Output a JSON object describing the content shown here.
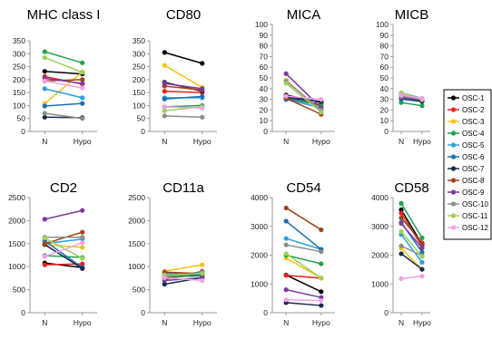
{
  "chart_data": {
    "type": "line",
    "categories": [
      "N",
      "Hypo"
    ],
    "legend": [
      {
        "name": "OSC-1",
        "color": "#000000"
      },
      {
        "name": "OSC-2",
        "color": "#e8201c"
      },
      {
        "name": "OSC-3",
        "color": "#f0c414"
      },
      {
        "name": "OSC-4",
        "color": "#1fa34a"
      },
      {
        "name": "OSC-5",
        "color": "#2aa0dc"
      },
      {
        "name": "OSC-6",
        "color": "#1f6eb4"
      },
      {
        "name": "OSC-7",
        "color": "#1a2a4a"
      },
      {
        "name": "OSC-8",
        "color": "#a0421a"
      },
      {
        "name": "OSC-9",
        "color": "#7a3aa0"
      },
      {
        "name": "OSC-10",
        "color": "#8c8c8c"
      },
      {
        "name": "OSC-11",
        "color": "#9cd05a"
      },
      {
        "name": "OSC-12",
        "color": "#f2a0e6"
      }
    ],
    "panels": [
      {
        "title": "MHC class I",
        "ylim": [
          0,
          350
        ],
        "yticks": [
          "0",
          "50",
          "100",
          "150",
          "200",
          "250",
          "300",
          "350"
        ],
        "series": [
          [
            232,
            222
          ],
          [
            212,
            183
          ],
          [
            108,
            230
          ],
          [
            308,
            265
          ],
          [
            165,
            130
          ],
          [
            98,
            108
          ],
          [
            55,
            53
          ],
          [
            195,
            200
          ],
          [
            205,
            185
          ],
          [
            70,
            50
          ],
          [
            285,
            228
          ],
          [
            195,
            168
          ]
        ]
      },
      {
        "title": "CD80",
        "ylim": [
          0,
          350
        ],
        "yticks": [
          "0",
          "50",
          "100",
          "150",
          "200",
          "250",
          "300",
          "350"
        ],
        "series": [
          [
            305,
            263
          ],
          [
            155,
            150
          ],
          [
            255,
            170
          ],
          [
            95,
            100
          ],
          [
            130,
            130
          ],
          [
            125,
            135
          ],
          [
            190,
            155
          ],
          [
            175,
            160
          ],
          [
            185,
            165
          ],
          [
            60,
            55
          ],
          [
            80,
            95
          ],
          [
            95,
            90
          ]
        ]
      },
      {
        "title": "MICA",
        "ylim": [
          0,
          100
        ],
        "yticks": [
          "0",
          "10",
          "20",
          "30",
          "40",
          "50",
          "60",
          "70",
          "80",
          "90",
          "100"
        ],
        "series": [
          [
            34,
            27
          ],
          [
            32,
            25
          ],
          [
            48,
            19
          ],
          [
            31,
            24
          ],
          [
            30,
            22
          ],
          [
            30,
            28
          ],
          [
            32,
            28
          ],
          [
            31,
            16
          ],
          [
            54,
            22
          ],
          [
            47,
            20
          ],
          [
            45,
            18
          ],
          [
            33,
            30
          ]
        ]
      },
      {
        "title": "MICB",
        "ylim": [
          0,
          100
        ],
        "yticks": [
          "0",
          "10",
          "20",
          "30",
          "40",
          "50",
          "60",
          "70",
          "80",
          "90",
          "100"
        ],
        "series": [
          [
            33,
            28
          ],
          [
            31,
            30
          ],
          [
            35,
            29
          ],
          [
            27,
            24
          ],
          [
            36,
            31
          ],
          [
            30,
            28
          ],
          [
            32,
            28
          ],
          [
            34,
            30
          ],
          [
            32,
            29
          ],
          [
            33,
            30
          ],
          [
            36,
            30
          ],
          [
            34,
            31
          ]
        ]
      },
      {
        "title": "CD2",
        "ylim": [
          0,
          2500
        ],
        "yticks": [
          "0",
          "500",
          "1000",
          "1500",
          "2000",
          "2500"
        ],
        "series": [
          [
            1080,
            980
          ],
          [
            1040,
            1060
          ],
          [
            1480,
            1420
          ],
          [
            1240,
            1200
          ],
          [
            1500,
            1600
          ],
          [
            1560,
            980
          ],
          [
            1480,
            960
          ],
          [
            1500,
            1750
          ],
          [
            2030,
            2220
          ],
          [
            1640,
            1640
          ],
          [
            1620,
            1180
          ],
          [
            1220,
            1520
          ]
        ]
      },
      {
        "title": "CD11a",
        "ylim": [
          0,
          2500
        ],
        "yticks": [
          "0",
          "500",
          "1000",
          "1500",
          "2000",
          "2500"
        ],
        "series": [
          [
            760,
            820
          ],
          [
            720,
            900
          ],
          [
            900,
            1040
          ],
          [
            780,
            800
          ],
          [
            800,
            880
          ],
          [
            850,
            820
          ],
          [
            620,
            760
          ],
          [
            880,
            850
          ],
          [
            700,
            760
          ],
          [
            790,
            860
          ],
          [
            820,
            850
          ],
          [
            760,
            700
          ]
        ]
      },
      {
        "title": "CD54",
        "ylim": [
          0,
          4000
        ],
        "yticks": [
          "0",
          "1000",
          "2000",
          "3000",
          "4000"
        ],
        "series": [
          [
            1310,
            730
          ],
          [
            1300,
            1200
          ],
          [
            1900,
            1200
          ],
          [
            2000,
            1700
          ],
          [
            2580,
            2200
          ],
          [
            3180,
            2200
          ],
          [
            350,
            250
          ],
          [
            3640,
            2880
          ],
          [
            800,
            530
          ],
          [
            2360,
            2120
          ],
          [
            2050,
            1200
          ],
          [
            450,
            420
          ]
        ]
      },
      {
        "title": "CD58",
        "ylim": [
          0,
          4000
        ],
        "yticks": [
          "0",
          "1000",
          "2000",
          "3000",
          "4000"
        ],
        "series": [
          [
            3580,
            2380
          ],
          [
            3460,
            2300
          ],
          [
            2240,
            1500
          ],
          [
            3800,
            2600
          ],
          [
            2720,
            1750
          ],
          [
            3140,
            2100
          ],
          [
            2050,
            1510
          ],
          [
            3300,
            2430
          ],
          [
            3100,
            2250
          ],
          [
            2320,
            1980
          ],
          [
            2820,
            1950
          ],
          [
            1180,
            1270
          ]
        ]
      }
    ]
  }
}
